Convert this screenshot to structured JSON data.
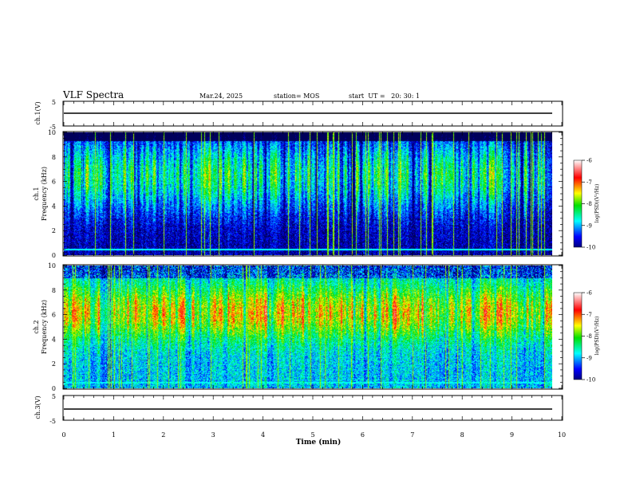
{
  "header": {
    "title": "VLF Spectra",
    "date": "Mar.24, 2025",
    "station": "station= MOS",
    "start": "start  UT =   20: 30: 1"
  },
  "chart_data": {
    "type": "heatmap",
    "xlabel": "Time  (min)",
    "xlim": [
      0,
      10
    ],
    "x_ticks": [
      "0",
      "1",
      "2",
      "3",
      "4",
      "5",
      "6",
      "7",
      "8",
      "9",
      "10"
    ],
    "panels": [
      {
        "id": "ch1v",
        "type": "line",
        "ylabel": "ch.1(V)",
        "ylim": [
          -5,
          5
        ],
        "y_ticks": [
          "5",
          "-5"
        ],
        "level": -1.5
      },
      {
        "id": "ch1",
        "type": "heatmap",
        "ylabel_top": "ch.1",
        "ylabel": "Frequency  (kHz)",
        "ylim": [
          0,
          10
        ],
        "y_ticks": [
          "0",
          "2",
          "4",
          "6",
          "8",
          "10"
        ],
        "time_extent": [
          0,
          9.8
        ],
        "colorbar": {
          "label": "log(PSD)(V²/Hz)",
          "range": [
            -10,
            -6
          ],
          "ticks": [
            "-6",
            "-7",
            "-8",
            "-9",
            "-10"
          ]
        }
      },
      {
        "id": "ch2",
        "type": "heatmap",
        "ylabel_top": "ch.2",
        "ylabel": "Frequency  (kHz)",
        "ylim": [
          0,
          10
        ],
        "y_ticks": [
          "0",
          "2",
          "4",
          "6",
          "8",
          "10"
        ],
        "time_extent": [
          0,
          9.8
        ],
        "colorbar": {
          "label": "log(PSD)(V²/Hz)",
          "range": [
            -10,
            -6
          ],
          "ticks": [
            "-6",
            "-7",
            "-8",
            "-9",
            "-10"
          ]
        }
      },
      {
        "id": "ch3v",
        "type": "line",
        "ylabel": "ch.3(V)",
        "ylim": [
          -5,
          5
        ],
        "y_ticks": [
          "5",
          "-5"
        ],
        "level": -1.5
      }
    ]
  }
}
